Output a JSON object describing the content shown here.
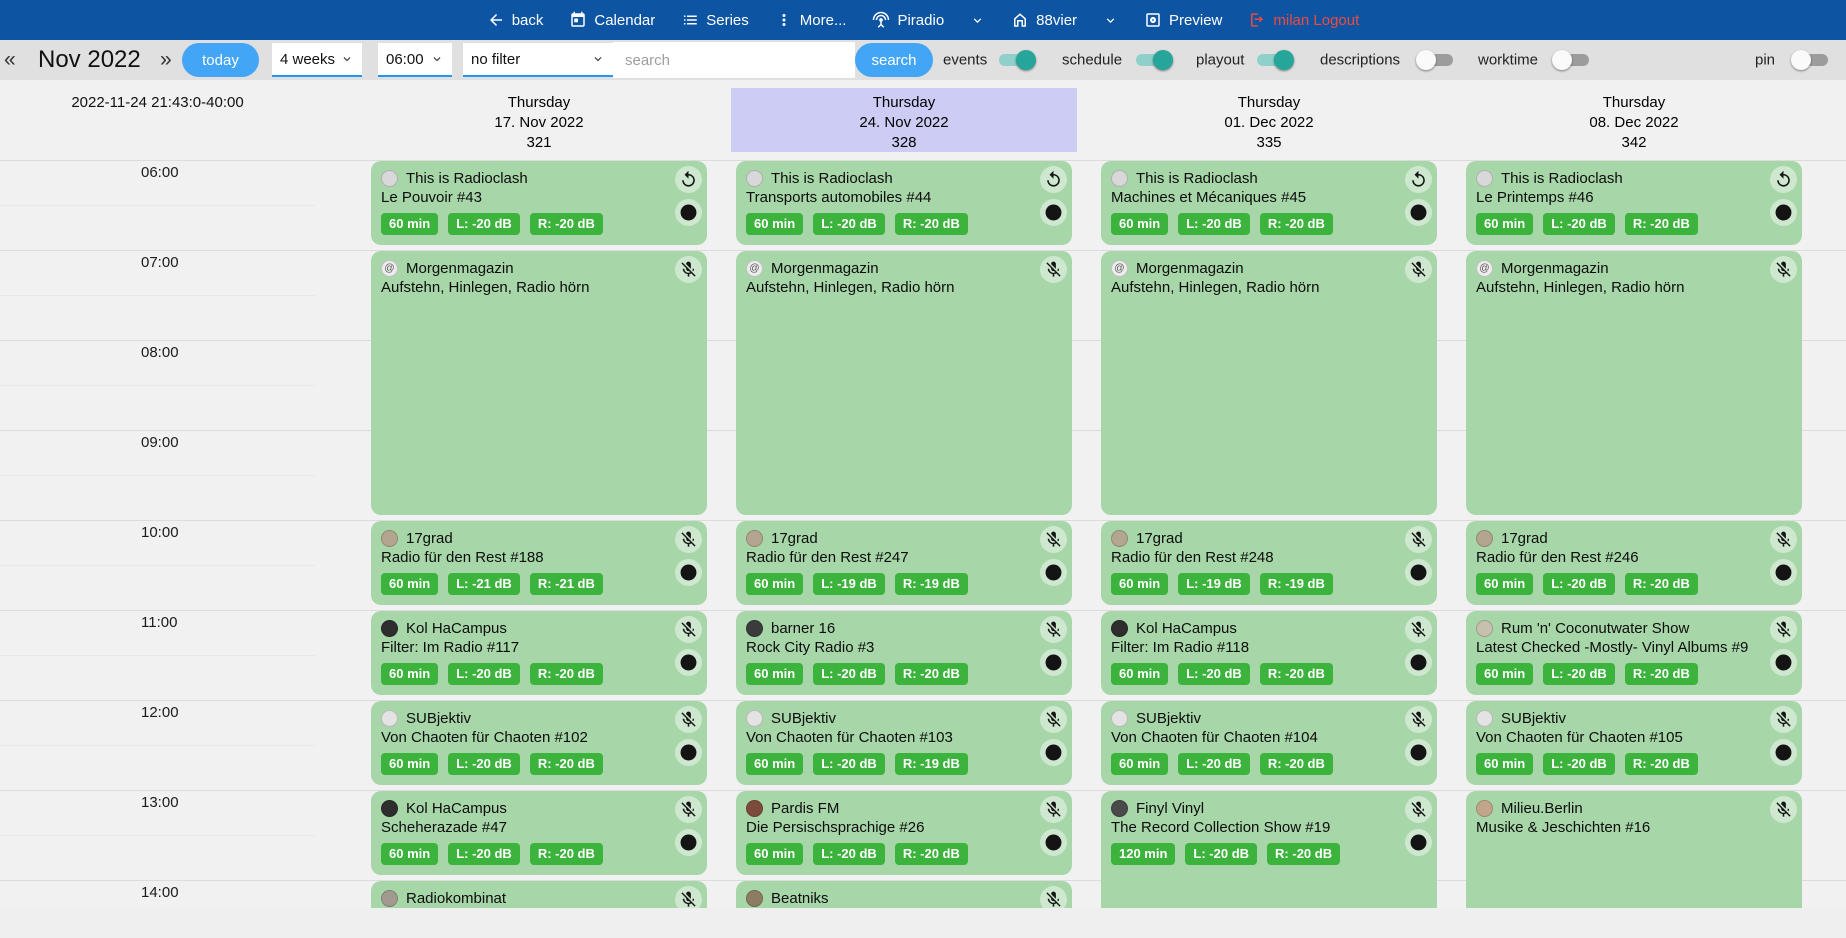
{
  "navbar": {
    "back": "back",
    "calendar": "Calendar",
    "series": "Series",
    "more": "More...",
    "station_primary": "Piradio",
    "station_secondary": "88vier",
    "preview": "Preview",
    "logout": "milan Logout"
  },
  "toolbar": {
    "prev": "«",
    "month_label": "Nov 2022",
    "next": "»",
    "today_button": "today",
    "range_select": "4 weeks",
    "start_time_select": "06:00",
    "filter_select": "no filter",
    "search_placeholder": "search",
    "search_button": "search",
    "toggles": [
      {
        "label": "events",
        "on": true
      },
      {
        "label": "schedule",
        "on": true
      },
      {
        "label": "playout",
        "on": true
      },
      {
        "label": "descriptions",
        "on": false
      },
      {
        "label": "worktime",
        "on": false
      },
      {
        "label": "pin",
        "on": false
      }
    ]
  },
  "calendar": {
    "timestamp": "2022-11-24 21:43:0-40:00",
    "hours": [
      "06:00",
      "07:00",
      "08:00",
      "09:00",
      "10:00",
      "11:00",
      "12:00",
      "13:00",
      "14:00"
    ],
    "days": [
      {
        "weekday": "Thursday",
        "date": "17. Nov 2022",
        "day_of_year": "321",
        "highlighted": false,
        "events": [
          {
            "show": "This is Radioclash",
            "episode": "Le Pouvoir #43",
            "badges": [
              "60 min",
              "L: -20 dB",
              "R: -20 dB"
            ],
            "start": 0,
            "duration": 1,
            "corner_icon": "replay-icon",
            "play": true,
            "avatar_color": "#d8d8d8"
          },
          {
            "show": "Morgenmagazin",
            "episode": "Aufstehn, Hinlegen, Radio hörn",
            "badges": [],
            "start": 1,
            "duration": 3,
            "corner_icon": "mic-off-icon",
            "play": false,
            "avatar_color": "#ececec",
            "avatar_text": "@"
          },
          {
            "show": "17grad",
            "episode": "Radio für den Rest #188",
            "badges": [
              "60 min",
              "L: -21 dB",
              "R: -21 dB"
            ],
            "start": 4,
            "duration": 1,
            "corner_icon": "mic-off-icon",
            "play": true,
            "avatar_color": "#b4a58f"
          },
          {
            "show": "Kol HaCampus",
            "episode": "Filter: Im Radio #117",
            "badges": [
              "60 min",
              "L: -20 dB",
              "R: -20 dB"
            ],
            "start": 5,
            "duration": 1,
            "corner_icon": "mic-off-icon",
            "play": true,
            "avatar_color": "#2e2e2e"
          },
          {
            "show": "SUBjektiv",
            "episode": "Von Chaoten für Chaoten #102",
            "badges": [
              "60 min",
              "L: -20 dB",
              "R: -20 dB"
            ],
            "start": 6,
            "duration": 1,
            "corner_icon": "mic-off-icon",
            "play": true,
            "avatar_color": "#e3e3e3"
          },
          {
            "show": "Kol HaCampus",
            "episode": "Scheherazade #47",
            "badges": [
              "60 min",
              "L: -20 dB",
              "R: -20 dB"
            ],
            "start": 7,
            "duration": 1,
            "corner_icon": "mic-off-icon",
            "play": true,
            "avatar_color": "#2e2e2e"
          },
          {
            "show": "Radiokombinat",
            "episode": "",
            "badges": [],
            "start": 8,
            "duration": 1,
            "corner_icon": "mic-off-icon",
            "play": false,
            "avatar_color": "#a09a90"
          }
        ]
      },
      {
        "weekday": "Thursday",
        "date": "24. Nov 2022",
        "day_of_year": "328",
        "highlighted": true,
        "events": [
          {
            "show": "This is Radioclash",
            "episode": "Transports automobiles #44",
            "badges": [
              "60 min",
              "L: -20 dB",
              "R: -20 dB"
            ],
            "start": 0,
            "duration": 1,
            "corner_icon": "replay-icon",
            "play": true,
            "avatar_color": "#d8d8d8"
          },
          {
            "show": "Morgenmagazin",
            "episode": "Aufstehn, Hinlegen, Radio hörn",
            "badges": [],
            "start": 1,
            "duration": 3,
            "corner_icon": "mic-off-icon",
            "play": false,
            "avatar_color": "#ececec",
            "avatar_text": "@"
          },
          {
            "show": "17grad",
            "episode": "Radio für den Rest #247",
            "badges": [
              "60 min",
              "L: -19 dB",
              "R: -19 dB"
            ],
            "start": 4,
            "duration": 1,
            "corner_icon": "mic-off-icon",
            "play": true,
            "avatar_color": "#b4a58f"
          },
          {
            "show": "barner 16",
            "episode": "Rock City Radio #3",
            "badges": [
              "60 min",
              "L: -20 dB",
              "R: -20 dB"
            ],
            "start": 5,
            "duration": 1,
            "corner_icon": "mic-off-icon",
            "play": true,
            "avatar_color": "#3b3b3b"
          },
          {
            "show": "SUBjektiv",
            "episode": "Von Chaoten für Chaoten #103",
            "badges": [
              "60 min",
              "L: -20 dB",
              "R: -19 dB"
            ],
            "start": 6,
            "duration": 1,
            "corner_icon": "mic-off-icon",
            "play": true,
            "avatar_color": "#e3e3e3"
          },
          {
            "show": "Pardis FM",
            "episode": "Die Persischsprachige #26",
            "badges": [
              "60 min",
              "L: -20 dB",
              "R: -20 dB"
            ],
            "start": 7,
            "duration": 1,
            "corner_icon": "mic-off-icon",
            "play": true,
            "avatar_color": "#7d4b3c"
          },
          {
            "show": "Beatniks",
            "episode": "",
            "badges": [],
            "start": 8,
            "duration": 1,
            "corner_icon": "mic-off-icon",
            "play": false,
            "avatar_color": "#8d7c64"
          }
        ]
      },
      {
        "weekday": "Thursday",
        "date": "01. Dec 2022",
        "day_of_year": "335",
        "highlighted": false,
        "events": [
          {
            "show": "This is Radioclash",
            "episode": "Machines et Mécaniques #45",
            "badges": [
              "60 min",
              "L: -20 dB",
              "R: -20 dB"
            ],
            "start": 0,
            "duration": 1,
            "corner_icon": "replay-icon",
            "play": true,
            "avatar_color": "#d8d8d8"
          },
          {
            "show": "Morgenmagazin",
            "episode": "Aufstehn, Hinlegen, Radio hörn",
            "badges": [],
            "start": 1,
            "duration": 3,
            "corner_icon": "mic-off-icon",
            "play": false,
            "avatar_color": "#ececec",
            "avatar_text": "@"
          },
          {
            "show": "17grad",
            "episode": "Radio für den Rest #248",
            "badges": [
              "60 min",
              "L: -19 dB",
              "R: -19 dB"
            ],
            "start": 4,
            "duration": 1,
            "corner_icon": "mic-off-icon",
            "play": true,
            "avatar_color": "#b4a58f"
          },
          {
            "show": "Kol HaCampus",
            "episode": "Filter: Im Radio #118",
            "badges": [
              "60 min",
              "L: -20 dB",
              "R: -20 dB"
            ],
            "start": 5,
            "duration": 1,
            "corner_icon": "mic-off-icon",
            "play": true,
            "avatar_color": "#2e2e2e"
          },
          {
            "show": "SUBjektiv",
            "episode": "Von Chaoten für Chaoten #104",
            "badges": [
              "60 min",
              "L: -20 dB",
              "R: -20 dB"
            ],
            "start": 6,
            "duration": 1,
            "corner_icon": "mic-off-icon",
            "play": true,
            "avatar_color": "#e3e3e3"
          },
          {
            "show": "Finyl Vinyl",
            "episode": "The Record Collection Show #19",
            "badges": [
              "120 min",
              "L: -20 dB",
              "R: -20 dB"
            ],
            "start": 7,
            "duration": 2,
            "corner_icon": "mic-off-icon",
            "play": true,
            "avatar_color": "#4a4a4a"
          }
        ]
      },
      {
        "weekday": "Thursday",
        "date": "08. Dec 2022",
        "day_of_year": "342",
        "highlighted": false,
        "events": [
          {
            "show": "This is Radioclash",
            "episode": "Le Printemps #46",
            "badges": [
              "60 min",
              "L: -20 dB",
              "R: -20 dB"
            ],
            "start": 0,
            "duration": 1,
            "corner_icon": "replay-icon",
            "play": true,
            "avatar_color": "#d8d8d8"
          },
          {
            "show": "Morgenmagazin",
            "episode": "Aufstehn, Hinlegen, Radio hörn",
            "badges": [],
            "start": 1,
            "duration": 3,
            "corner_icon": "mic-off-icon",
            "play": false,
            "avatar_color": "#ececec",
            "avatar_text": "@"
          },
          {
            "show": "17grad",
            "episode": "Radio für den Rest #246",
            "badges": [
              "60 min",
              "L: -20 dB",
              "R: -20 dB"
            ],
            "start": 4,
            "duration": 1,
            "corner_icon": "mic-off-icon",
            "play": true,
            "avatar_color": "#b4a58f"
          },
          {
            "show": "Rum 'n' Coconutwater Show",
            "episode": "Latest Checked -Mostly- Vinyl Albums #9",
            "badges": [
              "60 min",
              "L: -20 dB",
              "R: -20 dB"
            ],
            "start": 5,
            "duration": 1,
            "corner_icon": "mic-off-icon",
            "play": true,
            "avatar_color": "#c6c0ae"
          },
          {
            "show": "SUBjektiv",
            "episode": "Von Chaoten für Chaoten #105",
            "badges": [
              "60 min",
              "L: -20 dB",
              "R: -20 dB"
            ],
            "start": 6,
            "duration": 1,
            "corner_icon": "mic-off-icon",
            "play": true,
            "avatar_color": "#e3e3e3"
          },
          {
            "show": "Milieu.Berlin",
            "episode": "Musike & Jeschichten #16",
            "badges": [],
            "start": 7,
            "duration": 2,
            "corner_icon": "mic-off-icon",
            "play": false,
            "avatar_color": "#c2a68c"
          }
        ]
      }
    ]
  },
  "colors": {
    "navbar_blue": "#0d55a3",
    "accent_blue": "#42a5f5",
    "select_underline_blue": "#2196f3",
    "toggle_on_teal": "#26a69a",
    "card_green": "#a7d6a8",
    "badge_green": "#3cb33c",
    "highlight_lavender": "#ccccf5",
    "logout_red": "#ef4a3d"
  }
}
